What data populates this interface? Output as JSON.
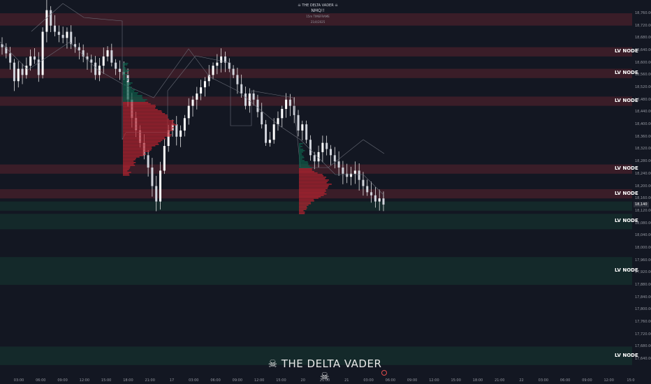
{
  "header": {
    "line1": "☠ THE DELTA VADER ☠",
    "line2": "NMQ!!",
    "line3": "15m TIMEFRAME",
    "line4": "21/4/2025"
  },
  "watermark": "☠ THE DELTA VADER ☠",
  "current_price_tag": "18,140",
  "colors": {
    "bg": "#131722",
    "candle": "#ffffff",
    "red_zone": "#3a1d28",
    "green_zone": "#14292a",
    "profile_red": "#b8232f",
    "profile_green": "#0e5e4a",
    "vwap": "#6a6d78"
  },
  "chart_data": {
    "type": "candlestick",
    "title": "☠ THE DELTA VADER ☠",
    "symbol": "NMQ!!",
    "timeframe": "15m TIMEFRAME",
    "date": "21/4/2025",
    "ylim": [
      17600,
      18800
    ],
    "y_ticks": [
      "18,760.00",
      "18,720.00",
      "18,680.00",
      "18,640.00",
      "18,600.00",
      "18,560.00",
      "18,520.00",
      "18,480.00",
      "18,440.00",
      "18,400.00",
      "18,360.00",
      "18,320.00",
      "18,280.00",
      "18,240.00",
      "18,200.00",
      "18,160.00",
      "18,120.00",
      "18,080.00",
      "18,040.00",
      "18,000.00",
      "17,960.00",
      "17,920.00",
      "17,880.00",
      "17,840.00",
      "17,800.00",
      "17,760.00",
      "17,720.00",
      "17,680.00",
      "17,640.00"
    ],
    "x_ticks": [
      "03:00",
      "06:00",
      "09:00",
      "12:00",
      "15:00",
      "18:00",
      "21:00",
      "17",
      "03:00",
      "06:00",
      "09:00",
      "12:00",
      "15:00",
      "20",
      "21:00",
      "21",
      "03:00",
      "06:00",
      "09:00",
      "12:00",
      "15:00",
      "18:00",
      "21:00",
      "22",
      "03:00",
      "06:00",
      "09:00",
      "12:00",
      "15:0"
    ],
    "close_path": [
      18650,
      18630,
      18600,
      18540,
      18580,
      18560,
      18590,
      18620,
      18610,
      18560,
      18700,
      18770,
      18720,
      18700,
      18690,
      18680,
      18700,
      18660,
      18650,
      18640,
      18620,
      18610,
      18600,
      18560,
      18590,
      18620,
      18640,
      18600,
      18580,
      18570,
      18560,
      18480,
      18420,
      18380,
      18340,
      18300,
      18260,
      18200,
      18150,
      18250,
      18330,
      18380,
      18400,
      18360,
      18380,
      18420,
      18460,
      18480,
      18500,
      18520,
      18540,
      18560,
      18590,
      18600,
      18620,
      18600,
      18580,
      18560,
      18530,
      18500,
      18460,
      18500,
      18480,
      18440,
      18400,
      18340,
      18350,
      18400,
      18420,
      18450,
      18480,
      18460,
      18430,
      18380,
      18400,
      18350,
      18300,
      18280,
      18310,
      18340,
      18320,
      18300,
      18280,
      18260,
      18240,
      18230,
      18240,
      18250,
      18220,
      18200,
      18180,
      18170,
      18150,
      18160,
      18140
    ],
    "zones": [
      {
        "low": 18620,
        "high": 18650,
        "kind": "red",
        "label": "LV NODE"
      },
      {
        "low": 18550,
        "high": 18580,
        "kind": "red",
        "label": "LV NODE"
      },
      {
        "low": 18460,
        "high": 18490,
        "kind": "red",
        "label": "LV NODE"
      },
      {
        "low": 18240,
        "high": 18270,
        "kind": "red",
        "label": "LV NODE"
      },
      {
        "low": 18160,
        "high": 18190,
        "kind": "red",
        "label": "LV NODE"
      },
      {
        "low": 18060,
        "high": 18110,
        "kind": "green",
        "label": "LV NODE"
      },
      {
        "low": 17880,
        "high": 17970,
        "kind": "green",
        "label": "LV NODE"
      },
      {
        "low": 17620,
        "high": 17680,
        "kind": "green",
        "label": "LV NODE"
      }
    ],
    "extra_zones": [
      {
        "low": 18720,
        "high": 18760,
        "kind": "red"
      },
      {
        "low": 18120,
        "high": 18150,
        "kind": "green"
      }
    ]
  }
}
